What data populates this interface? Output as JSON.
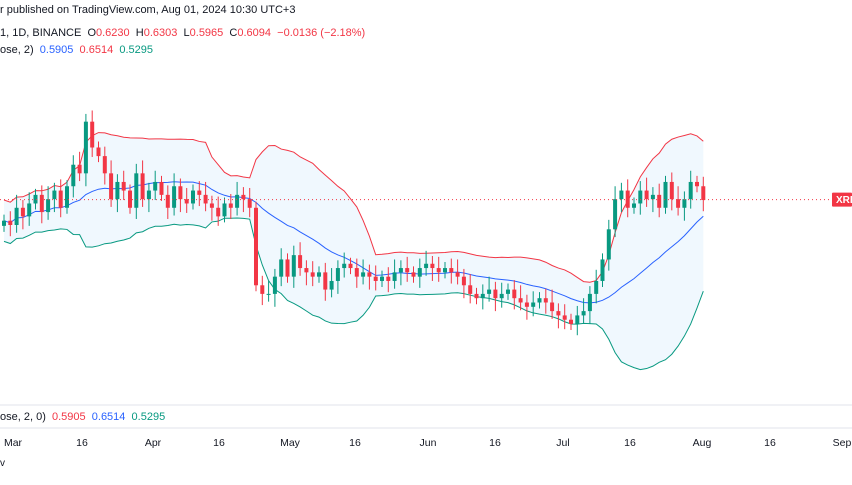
{
  "header": {
    "publish_line": "r published on TradingView.com, Aug 01, 2024 10:30 UTC+3",
    "symbol_line": "1, 1D, BINANCE",
    "ohlc": {
      "o_label": "O",
      "o": "0.6230",
      "h_label": "H",
      "h": "0.6303",
      "l_label": "L",
      "l": "0.5965",
      "c_label": "C",
      "c": "0.6094",
      "change": "−0.0136 (−2.18%)"
    },
    "indicator": {
      "name": "ose, 2)",
      "basis": "0.5905",
      "upper": "0.6514",
      "lower": "0.5295"
    }
  },
  "lower_pane": {
    "name": "ose, 2, 0)",
    "basis": "0.5905",
    "upper": "0.6514",
    "lower": "0.5295"
  },
  "price_tag": "XRP",
  "footer_fragment": "v",
  "colors": {
    "up": "#089981",
    "down": "#f23645",
    "basis": "#2962ff",
    "upper": "#f23645",
    "lower": "#089981",
    "band_fill": "#e3f2fd"
  },
  "chart_data": {
    "type": "candlestick",
    "symbol": "XRP",
    "timeframe": "1D",
    "x_ticks": [
      "Mar",
      "16",
      "Apr",
      "16",
      "May",
      "16",
      "Jun",
      "16",
      "Jul",
      "16",
      "Aug",
      "16",
      "Sep"
    ],
    "y_range": [
      0.4,
      0.76
    ],
    "last_close": 0.6094,
    "indicators": {
      "basis_last": 0.5905,
      "upper_last": 0.6514,
      "lower_last": 0.5295
    },
    "close_series": [
      0.585,
      0.58,
      0.6,
      0.59,
      0.605,
      0.615,
      0.595,
      0.61,
      0.62,
      0.6,
      0.625,
      0.65,
      0.64,
      0.7,
      0.67,
      0.66,
      0.64,
      0.61,
      0.63,
      0.62,
      0.6,
      0.64,
      0.61,
      0.62,
      0.63,
      0.615,
      0.6,
      0.625,
      0.61,
      0.605,
      0.62,
      0.615,
      0.605,
      0.6,
      0.59,
      0.605,
      0.6,
      0.615,
      0.61,
      0.6,
      0.51,
      0.5,
      0.5,
      0.52,
      0.54,
      0.52,
      0.545,
      0.53,
      0.525,
      0.52,
      0.525,
      0.505,
      0.515,
      0.53,
      0.535,
      0.53,
      0.52,
      0.525,
      0.52,
      0.515,
      0.52,
      0.515,
      0.525,
      0.53,
      0.525,
      0.52,
      0.53,
      0.535,
      0.53,
      0.525,
      0.53,
      0.525,
      0.52,
      0.51,
      0.5,
      0.495,
      0.5,
      0.505,
      0.495,
      0.5,
      0.505,
      0.495,
      0.49,
      0.485,
      0.49,
      0.495,
      0.49,
      0.48,
      0.475,
      0.47,
      0.465,
      0.475,
      0.48,
      0.5,
      0.515,
      0.54,
      0.575,
      0.61,
      0.62,
      0.6,
      0.605,
      0.62,
      0.61,
      0.615,
      0.6,
      0.63,
      0.61,
      0.6,
      0.61,
      0.63,
      0.625,
      0.609
    ]
  }
}
